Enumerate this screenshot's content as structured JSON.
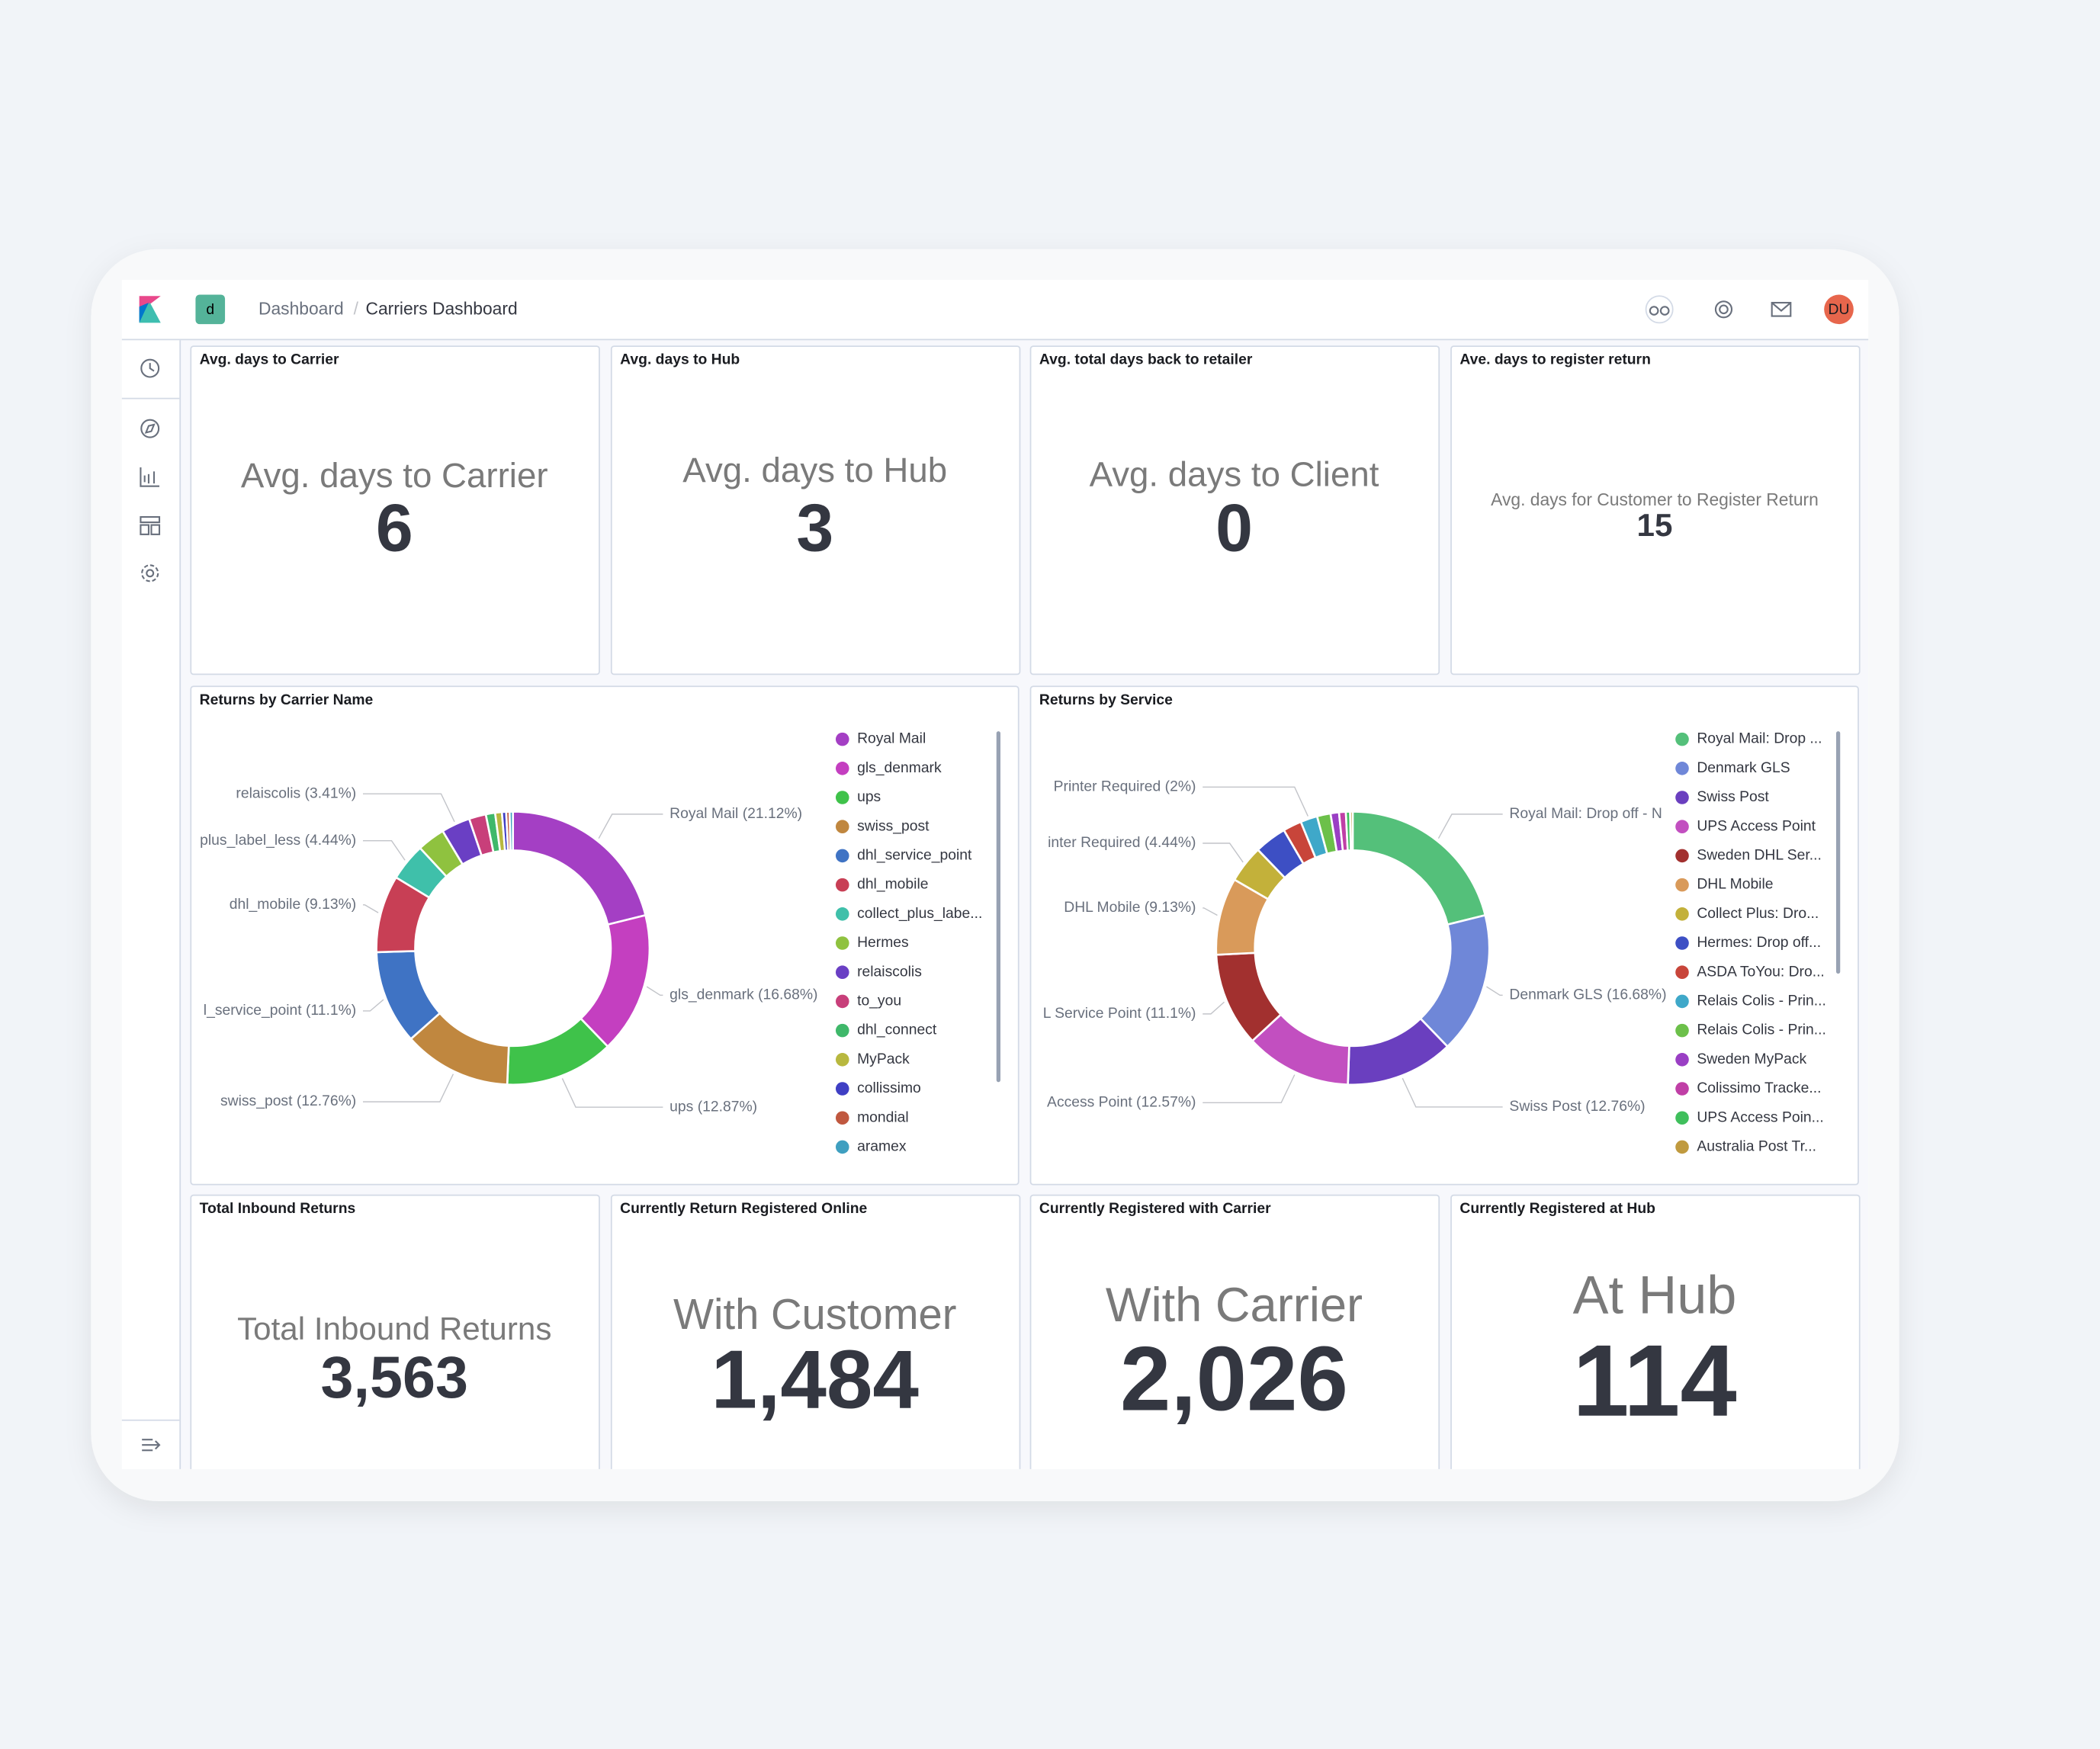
{
  "header": {
    "badge": "d",
    "breadcrumbs": [
      "Dashboard",
      "Carriers Dashboard"
    ],
    "avatar": "DU"
  },
  "metrics_top": [
    {
      "title": "Avg. days to Carrier",
      "caption": "Avg. days to Carrier",
      "value": 6
    },
    {
      "title": "Avg. days to Hub",
      "caption": "Avg. days to Hub",
      "value": 3
    },
    {
      "title": "Avg. total days back to retailer",
      "caption": "Avg. days to Client",
      "value": 0
    },
    {
      "title": "Ave. days to register return",
      "caption": "Avg. days for Customer to Register Return",
      "value": 15
    }
  ],
  "chart_data": [
    {
      "type": "pie",
      "title": "Returns by Carrier Name",
      "categories": [
        "Royal Mail",
        "gls_denmark",
        "ups",
        "swiss_post",
        "dhl_service_point",
        "dhl_mobile",
        "collect_plus_labe...",
        "Hermes",
        "relaiscolis",
        "to_you",
        "dhl_connect",
        "MyPack",
        "collissimo",
        "mondial",
        "aramex"
      ],
      "values": [
        21.12,
        16.68,
        12.87,
        12.76,
        11.1,
        9.13,
        4.44,
        3.3,
        3.41,
        2,
        1.1,
        0.8,
        0.5,
        0.4,
        0.39
      ],
      "colors": [
        "#a43fc4",
        "#c43fc0",
        "#3fc24a",
        "#c0873f",
        "#3f73c4",
        "#c83f55",
        "#3fc0aa",
        "#8fc23f",
        "#6a3fc4",
        "#c83f7a",
        "#3fb86a",
        "#b8b83f",
        "#3f3fc4",
        "#c0583f",
        "#3f9fc0"
      ],
      "slice_labels": [
        "Royal Mail (21.12%)",
        "gls_denmark (16.68%)",
        "ups (12.87%)",
        "swiss_post (12.76%)",
        "l_service_point (11.1%)",
        "dhl_mobile (9.13%)",
        "plus_label_less (4.44%)",
        null,
        "relaiscolis (3.41%)",
        null,
        null,
        null,
        null,
        null,
        null
      ]
    },
    {
      "type": "pie",
      "title": "Returns by Service",
      "categories": [
        "Royal Mail: Drop ...",
        "Denmark GLS",
        "Swiss Post",
        "UPS Access Point",
        "Sweden DHL Ser...",
        "DHL Mobile",
        "Collect Plus: Dro...",
        "Hermes: Drop off...",
        "ASDA ToYou: Dro...",
        "Relais Colis - Prin...",
        "Relais Colis - Prin...",
        "Sweden MyPack",
        "Colissimo Tracke...",
        "UPS Access Poin...",
        "Australia Post Tr..."
      ],
      "values": [
        21.12,
        16.68,
        12.76,
        12.57,
        11.1,
        9.13,
        4.44,
        3.8,
        2.2,
        2,
        1.6,
        1,
        0.8,
        0.5,
        0.3
      ],
      "colors": [
        "#54c07a",
        "#6f87d8",
        "#6a3fbf",
        "#c24fc0",
        "#a2302f",
        "#d99a5a",
        "#c3b13a",
        "#3d4fc4",
        "#c8453a",
        "#3fa8c9",
        "#6cc04a",
        "#9a3fc4",
        "#c03fa6",
        "#3fbf5c",
        "#c09a3f"
      ],
      "slice_labels": [
        "Royal Mail: Drop off - N",
        "Denmark GLS (16.68%)",
        "Swiss Post (12.76%)",
        "Access Point (12.57%)",
        "L Service Point (11.1%)",
        "DHL Mobile (9.13%)",
        "inter Required (4.44%)",
        null,
        null,
        "Printer Required (2%)",
        null,
        null,
        null,
        null,
        null
      ]
    }
  ],
  "metrics_bottom": [
    {
      "title": "Total Inbound Returns",
      "caption": "Total Inbound Returns",
      "value": "3,563"
    },
    {
      "title": "Currently Return Registered Online",
      "caption": "With Customer",
      "value": "1,484"
    },
    {
      "title": "Currently Registered with Carrier",
      "caption": "With Carrier",
      "value": "2,026"
    },
    {
      "title": "Currently Registered at Hub",
      "caption": "At Hub",
      "value": "114"
    }
  ]
}
